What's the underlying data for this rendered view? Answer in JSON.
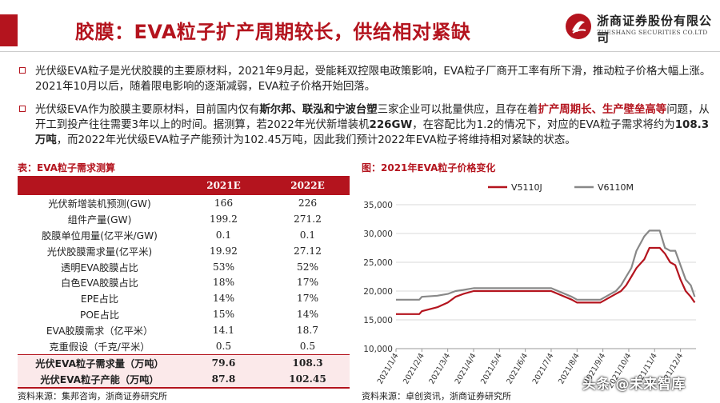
{
  "header": {
    "title": "胶膜：EVA粒子扩产周期较长，供给相对紧缺",
    "logo_cn": "浙商证券股份有限公司",
    "logo_en": "ZHESHANG SECURITIES CO.LTD"
  },
  "bullets": {
    "b1": "光伏级EVA粒子是光伏胶膜的主要原材料，2021年9月起，受能耗双控限电政策影响，EVA粒子厂商开工率有所下滑，推动粒子价格大幅上涨。2021年10月以后，随着限电影响的逐渐减弱，EVA粒子价格开始回落。",
    "b2_p1": "光伏级EVA作为胶膜主要原材料，目前国内仅有",
    "b2_bold1": "斯尔邦、联泓和宁波台塑",
    "b2_p2": "三家企业可以批量供应，且存在着",
    "b2_bold2": "扩产周期长、生产壁垒高等",
    "b2_p3": "问题，从开工到投产往往需要3年以上的时间。据测算，若2022年光伏新增装机",
    "b2_bold3": "226GW",
    "b2_p4": "，在容配比为1.2的情况下，对应的EVA粒子需求将约为",
    "b2_bold4": "108.3万吨",
    "b2_p5": "，而2022年光伏级EVA粒子产能预计为102.45万吨，因此我们预计2022年EVA粒子将维持相对紧缺的状态。"
  },
  "table": {
    "caption": "表：EVA粒子需求测算",
    "headers": [
      "",
      "2021E",
      "2022E"
    ],
    "rows": [
      {
        "label": "光伏新增装机预测(GW)",
        "v1": "166",
        "v2": "226"
      },
      {
        "label": "组件产量(GW)",
        "v1": "199.2",
        "v2": "271.2"
      },
      {
        "label": "胶膜单位用量(亿平米/GW)",
        "v1": "0.1",
        "v2": "0.1"
      },
      {
        "label": "光伏胶膜需求量(亿平米)",
        "v1": "19.92",
        "v2": "27.12"
      },
      {
        "label": "透明EVA胶膜占比",
        "v1": "53%",
        "v2": "52%"
      },
      {
        "label": "白色EVA胶膜占比",
        "v1": "18%",
        "v2": "17%"
      },
      {
        "label": "EPE占比",
        "v1": "14%",
        "v2": "17%"
      },
      {
        "label": "POE占比",
        "v1": "15%",
        "v2": "14%"
      },
      {
        "label": "EVA胶膜需求（亿平米）",
        "v1": "14.1",
        "v2": "18.7"
      },
      {
        "label": "克重假设（千克/平米）",
        "v1": "0.5",
        "v2": "0.5"
      },
      {
        "label": "光伏EVA粒子需求量（万吨）",
        "v1": "79.6",
        "v2": "108.3"
      },
      {
        "label": "光伏EVA粒子产能（万吨）",
        "v1": "87.8",
        "v2": "102.45"
      }
    ],
    "source": "资料来源：集邦咨询，浙商证券研究所"
  },
  "chart_data": {
    "type": "line",
    "title": "图：2021年EVA粒子价格变化",
    "xlabel": "",
    "ylabel": "",
    "ylim": [
      10000,
      35000
    ],
    "yticks": [
      "10,000",
      "15,000",
      "20,000",
      "25,000",
      "30,000",
      "35,000"
    ],
    "xticks": [
      "2021/1/4",
      "2021/2/4",
      "2021/3/4",
      "2021/4/4",
      "2021/5/4",
      "2021/6/4",
      "2021/7/4",
      "2021/8/4",
      "2021/9/4",
      "2021/10/4",
      "2021/11/4",
      "2021/12/4"
    ],
    "legend_position": "top",
    "grid": true,
    "series": [
      {
        "name": "V5110J",
        "color": "#b4141e",
        "x": [
          0,
          0.9,
          1.0,
          1.6,
          2.0,
          2.3,
          2.6,
          3.0,
          4.0,
          5.0,
          6.0,
          6.8,
          7.0,
          7.6,
          7.9,
          8.1,
          8.3,
          8.5,
          8.7,
          8.9,
          9.1,
          9.3,
          9.6,
          9.8,
          10.0,
          10.2,
          10.4,
          10.6,
          10.8,
          11.0,
          11.2,
          11.4,
          11.55
        ],
        "y": [
          16000,
          16000,
          16500,
          17200,
          18000,
          19000,
          19500,
          20000,
          20000,
          20000,
          20000,
          18500,
          18000,
          18000,
          18000,
          18500,
          19000,
          19500,
          20000,
          21000,
          22500,
          24000,
          25500,
          27500,
          27500,
          27500,
          26500,
          25000,
          24500,
          22000,
          20000,
          19000,
          18000
        ]
      },
      {
        "name": "V6110M",
        "color": "#888888",
        "x": [
          0,
          0.9,
          1.0,
          1.6,
          2.0,
          2.3,
          2.6,
          3.0,
          4.0,
          5.0,
          6.0,
          6.8,
          7.0,
          7.6,
          7.9,
          8.1,
          8.3,
          8.5,
          8.7,
          8.9,
          9.1,
          9.3,
          9.6,
          9.8,
          10.0,
          10.2,
          10.4,
          10.6,
          10.8,
          11.0,
          11.2,
          11.4,
          11.55
        ],
        "y": [
          18500,
          18500,
          19000,
          19200,
          19500,
          20000,
          20200,
          20500,
          20500,
          20500,
          20500,
          19000,
          18500,
          18500,
          18500,
          19000,
          19500,
          20000,
          21000,
          22500,
          24000,
          27000,
          29500,
          30500,
          30500,
          30500,
          27500,
          27000,
          27000,
          24500,
          22000,
          21000,
          19000
        ]
      }
    ],
    "source": "资料来源：卓创资讯，浙商证券研究所"
  },
  "watermark": "头条 @未来智库"
}
